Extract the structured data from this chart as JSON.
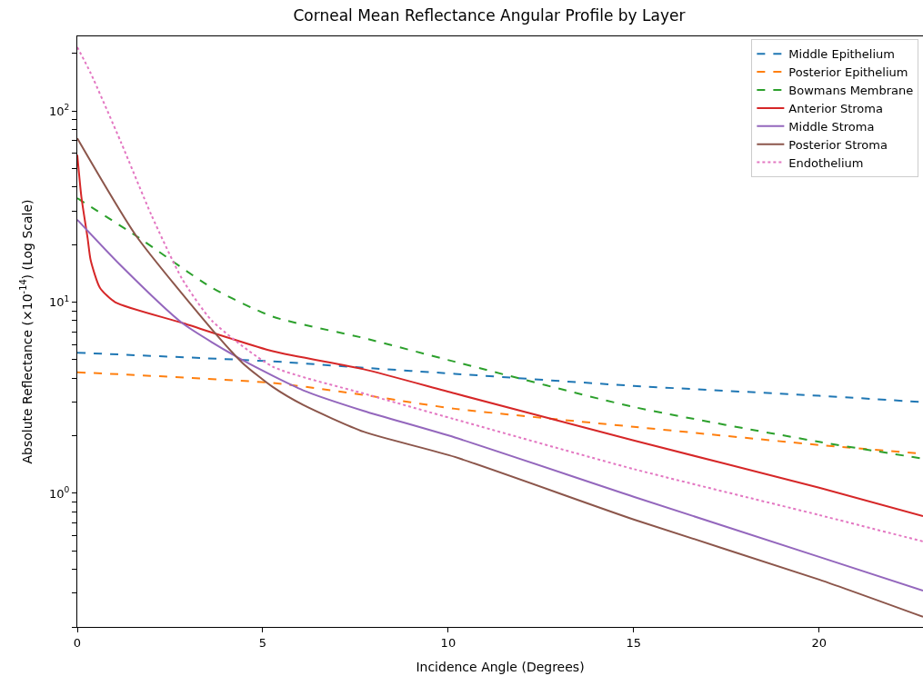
{
  "chart_data": {
    "type": "line",
    "title": "Corneal Mean Reflectance Angular Profile by Layer",
    "xlabel": "Incidence Angle (Degrees)",
    "ylabel": "Absolute Reflectance (×10$^{-14}$) (Log Scale)",
    "log": "y",
    "legend": "top right",
    "marker": "none",
    "xlim": [
      0,
      22.8
    ],
    "xticks": [
      0,
      5,
      10,
      15,
      20
    ],
    "ylim": [
      0.2,
      246
    ],
    "yticks": [
      {
        "value": 0.2,
        "label": null
      },
      {
        "value": 0.3,
        "label": null
      },
      {
        "value": 0.4,
        "label": null
      },
      {
        "value": 0.5,
        "label": null
      },
      {
        "value": 0.6,
        "label": null
      },
      {
        "value": 0.7,
        "label": null
      },
      {
        "value": 0.8,
        "label": null
      },
      {
        "value": 0.9,
        "label": null
      },
      {
        "value": 1,
        "label": "10$^{0}$"
      },
      {
        "value": 2,
        "label": null
      },
      {
        "value": 3,
        "label": null
      },
      {
        "value": 4,
        "label": null
      },
      {
        "value": 5,
        "label": null
      },
      {
        "value": 6,
        "label": null
      },
      {
        "value": 7,
        "label": null
      },
      {
        "value": 8,
        "label": null
      },
      {
        "value": 9,
        "label": null
      },
      {
        "value": 10,
        "label": "10$^{1}$"
      },
      {
        "value": 20,
        "label": null
      },
      {
        "value": 30,
        "label": null
      },
      {
        "value": 40,
        "label": null
      },
      {
        "value": 50,
        "label": null
      },
      {
        "value": 60,
        "label": null
      },
      {
        "value": 70,
        "label": null
      },
      {
        "value": 80,
        "label": null
      },
      {
        "value": 90,
        "label": null
      },
      {
        "value": 100,
        "label": "10$^{2}$"
      },
      {
        "value": 200,
        "label": null
      }
    ],
    "series": [
      {
        "name": "Middle Epithelium",
        "color": "#1f77b4",
        "line_style": "dashed",
        "x": [
          0,
          5.27,
          7.72,
          10.18,
          15,
          20,
          22.8
        ],
        "values": [
          5.44,
          4.9,
          4.54,
          4.22,
          3.65,
          3.24,
          3.0
        ]
      },
      {
        "name": "Posterior Epithelium",
        "color": "#ff7f0e",
        "line_style": "dashed",
        "x": [
          0,
          5.27,
          7.72,
          10.18,
          15,
          20,
          22.8
        ],
        "values": [
          4.3,
          3.78,
          3.27,
          2.77,
          2.23,
          1.79,
          1.61
        ]
      },
      {
        "name": "Bowmans Membrane",
        "color": "#2ca02c",
        "line_style": "dashed",
        "x": [
          0,
          1.59,
          3.63,
          5.27,
          7.72,
          10.18,
          15,
          20,
          22.8
        ],
        "values": [
          35,
          22.2,
          11.9,
          8.4,
          6.5,
          4.88,
          2.83,
          1.86,
          1.52
        ]
      },
      {
        "name": "Anterior Stroma",
        "color": "#d62728",
        "line_style": "solid",
        "x": [
          0,
          0.11,
          0.28,
          0.36,
          0.61,
          1.02,
          2.82,
          5.27,
          7.72,
          10.18,
          15,
          20,
          22.8
        ],
        "values": [
          59,
          35.6,
          21.5,
          16.6,
          11.9,
          10.0,
          7.8,
          5.54,
          4.46,
          3.33,
          1.89,
          1.07,
          0.76
        ]
      },
      {
        "name": "Middle Stroma",
        "color": "#9467bd",
        "line_style": "solid",
        "x": [
          0,
          1.18,
          2.82,
          4.46,
          6.09,
          7.72,
          10.18,
          15,
          20,
          22.8
        ],
        "values": [
          27,
          15.5,
          7.8,
          4.97,
          3.46,
          2.7,
          1.96,
          0.96,
          0.465,
          0.31
        ]
      },
      {
        "name": "Posterior Stroma",
        "color": "#8c564b",
        "line_style": "solid",
        "x": [
          0,
          1.59,
          3.63,
          4.46,
          5.27,
          6.09,
          7.72,
          10.18,
          15,
          20,
          22.8
        ],
        "values": [
          72,
          22.2,
          7.2,
          4.8,
          3.6,
          2.9,
          2.1,
          1.55,
          0.73,
          0.354,
          0.226
        ]
      },
      {
        "name": "Endothelium",
        "color": "#e377c2",
        "line_style": "dotted",
        "x": [
          0,
          0.36,
          1.18,
          2.0,
          2.82,
          3.63,
          5.27,
          7.72,
          10.18,
          15,
          20,
          22.8
        ],
        "values": [
          216,
          158,
          68.5,
          28.5,
          13.3,
          8.0,
          4.6,
          3.33,
          2.44,
          1.34,
          0.77,
          0.56
        ]
      }
    ]
  }
}
